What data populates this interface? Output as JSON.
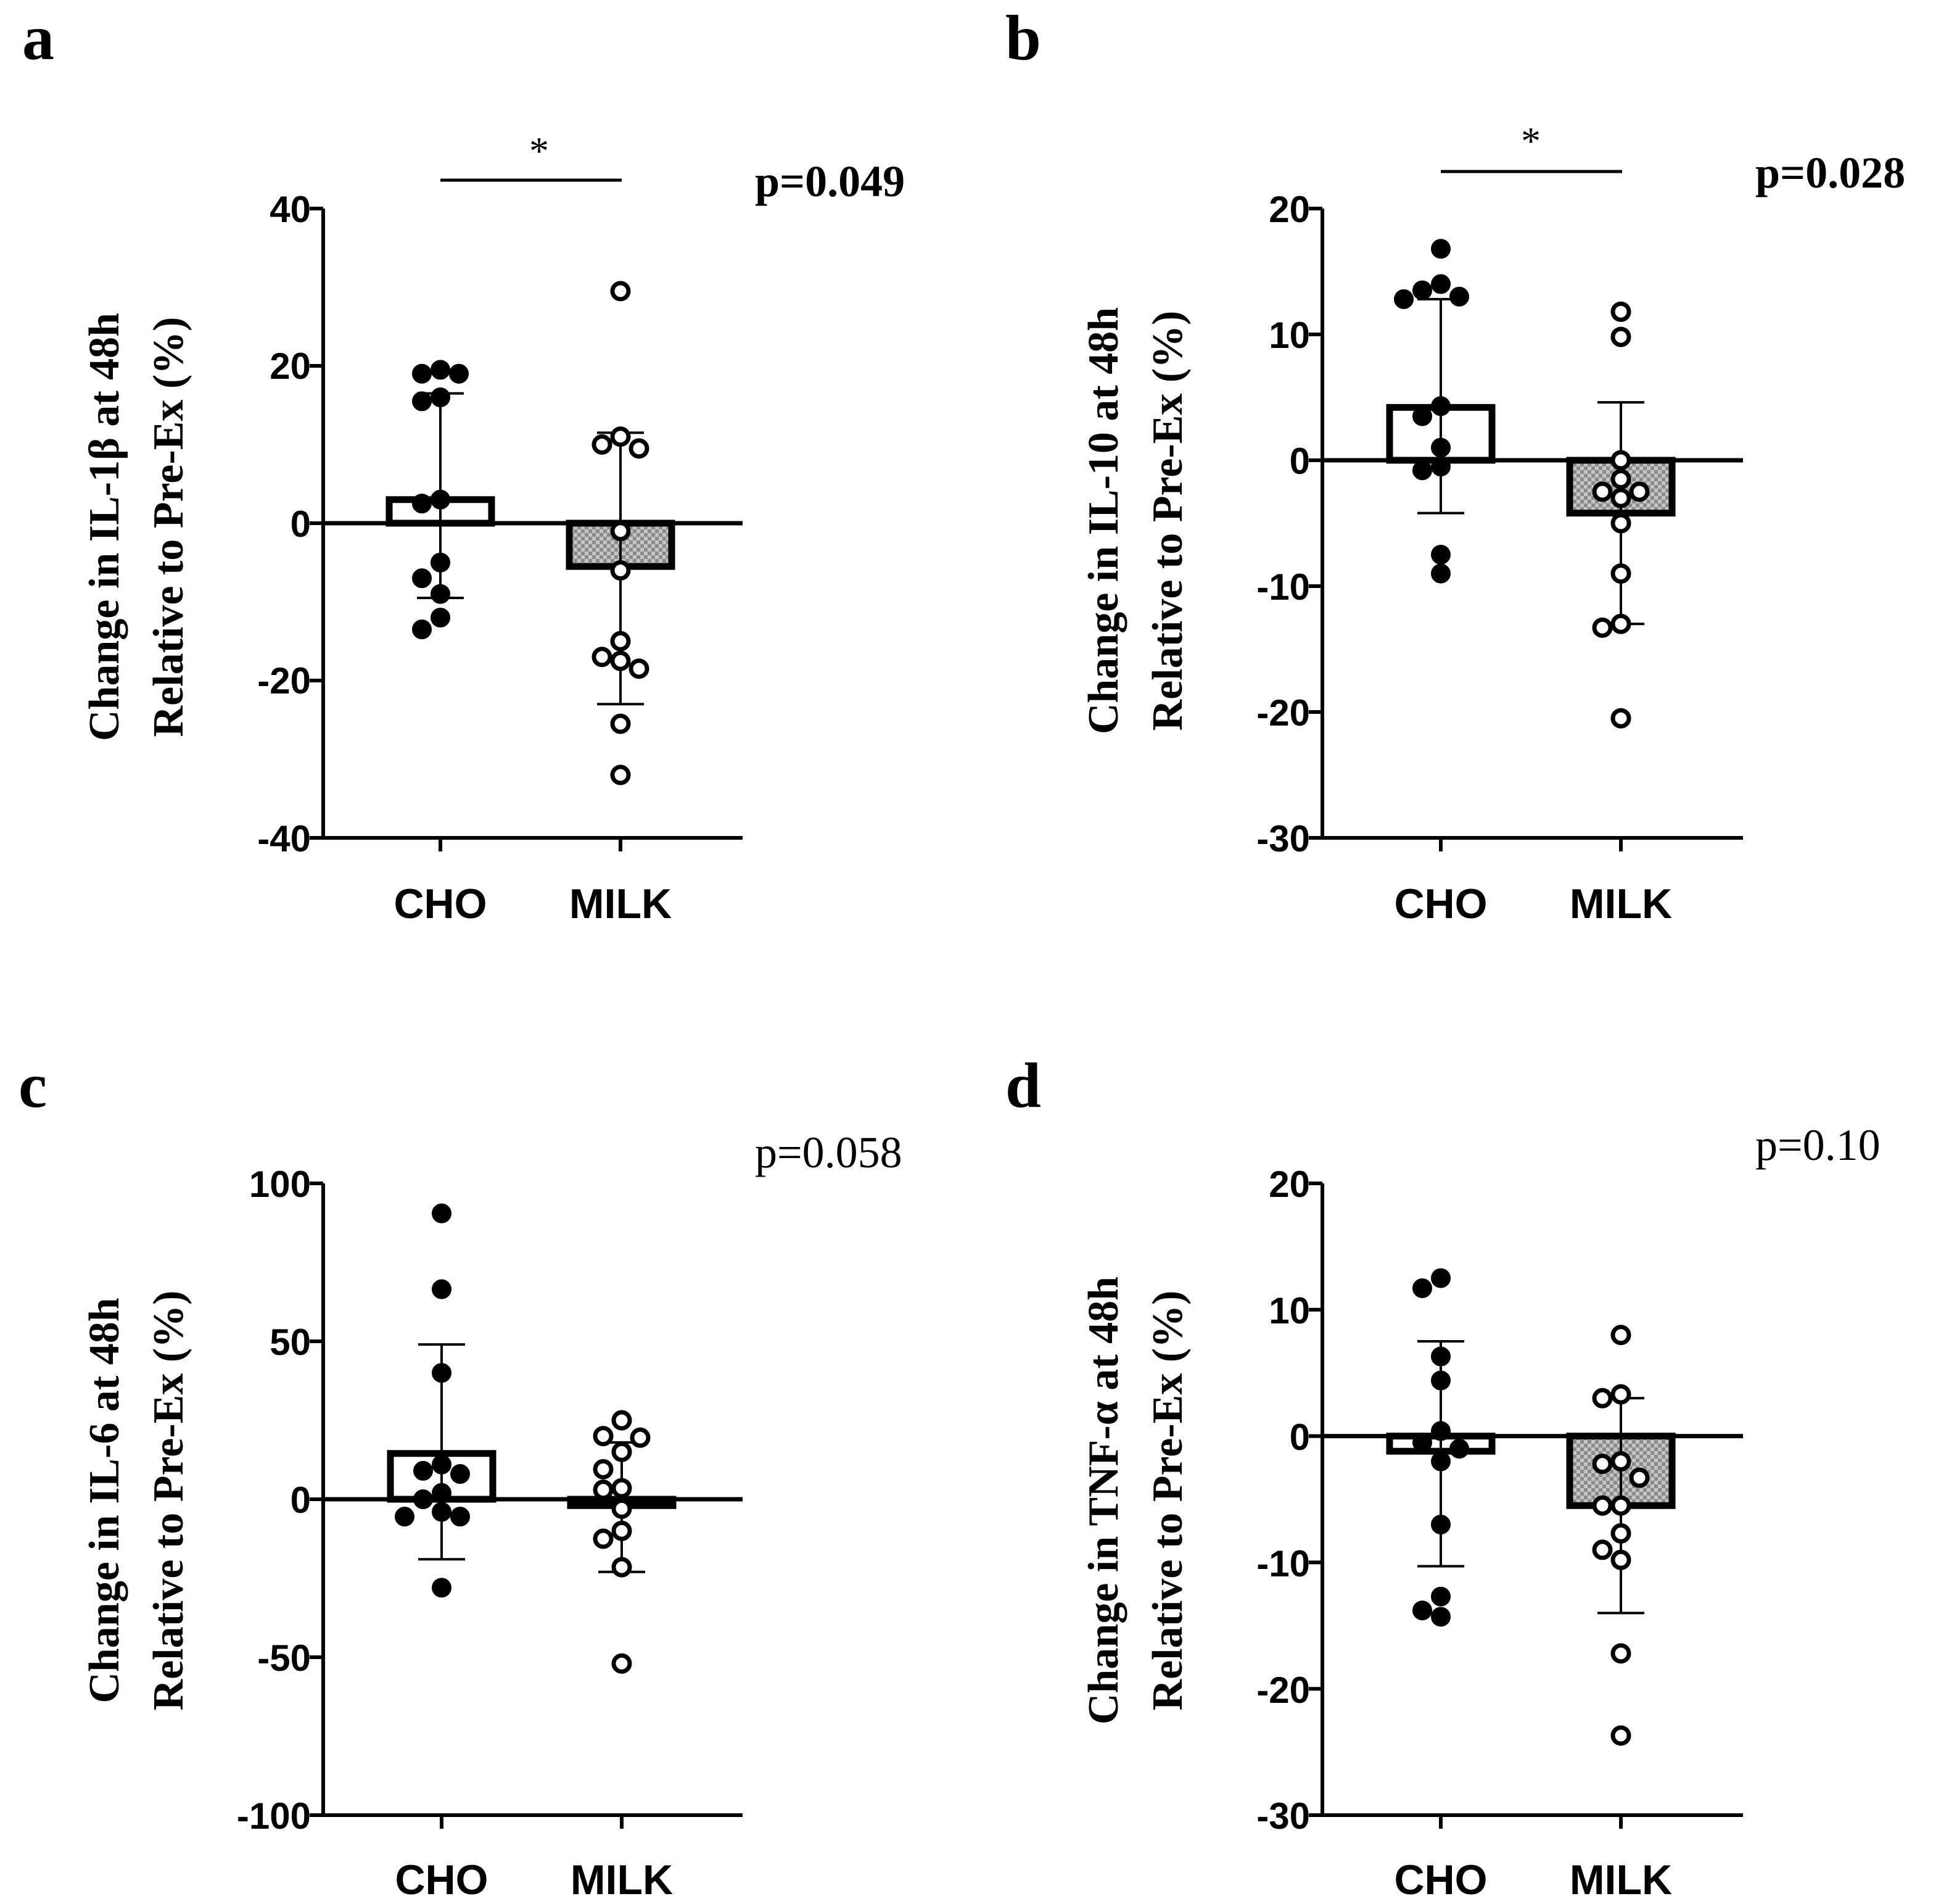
{
  "chart_data": [
    {
      "type": "bar",
      "panel": "a",
      "categories": [
        "CHO",
        "MILK"
      ],
      "means": [
        3,
        -5.5
      ],
      "errors": [
        {
          "upper": 16.5,
          "lower": -9.5
        },
        {
          "upper": 11.5,
          "lower": -23
        }
      ],
      "points": [
        [
          19,
          19.5,
          19,
          15.5,
          16,
          3,
          2.5,
          -5,
          -7,
          -9,
          -12,
          -13.5
        ],
        [
          29.5,
          11,
          10,
          9.5,
          -1,
          -6,
          -15,
          -17,
          -17.5,
          -18.5,
          -25.5,
          -32
        ]
      ],
      "ylabel_lines": [
        "Change in IL-1β at 48h",
        "Relative to Pre-Ex (%)"
      ],
      "ylim": [
        -40,
        40
      ],
      "yticks": [
        40,
        20,
        0,
        -20,
        -40
      ],
      "yticklabels": [
        "40",
        "20",
        "0",
        "-20",
        "-40"
      ],
      "p_value": "p=0.049",
      "p_bold": true,
      "significance": "*"
    },
    {
      "type": "bar",
      "panel": "b",
      "categories": [
        "CHO",
        "MILK"
      ],
      "means": [
        4.2,
        -4.2
      ],
      "errors": [
        {
          "upper": 12.8,
          "lower": -4.2
        },
        {
          "upper": 4.6,
          "lower": -13
        }
      ],
      "points": [
        [
          16.8,
          14,
          13,
          12.8,
          4.3,
          3.5,
          1,
          -0.8,
          -0.5,
          -7.5,
          -9,
          13.5
        ],
        [
          11.8,
          9.8,
          0,
          -1.5,
          -2.5,
          -2.5,
          -3,
          -5,
          -9,
          -13,
          -13.3,
          -20.5
        ]
      ],
      "ylabel_lines": [
        "Change in IL-10 at 48h",
        "Relative to Pre-Ex (%)"
      ],
      "ylim": [
        -30,
        20
      ],
      "yticks": [
        20,
        10,
        0,
        -10,
        -20,
        -30
      ],
      "yticklabels": [
        "20",
        "10",
        "0",
        "-10",
        "-20",
        "-30"
      ],
      "p_value": "p=0.028",
      "p_bold": true,
      "significance": "*"
    },
    {
      "type": "bar",
      "panel": "c",
      "categories": [
        "CHO",
        "MILK"
      ],
      "means": [
        14.5,
        -2
      ],
      "errors": [
        {
          "upper": 49,
          "lower": -19
        },
        {
          "upper": 18,
          "lower": -23
        }
      ],
      "points": [
        [
          90.5,
          66.5,
          40,
          11,
          9,
          8,
          2,
          0,
          -5.5,
          -5.5,
          -4,
          -28
        ],
        [
          25,
          20,
          19.5,
          15,
          9.5,
          3.5,
          3,
          -3,
          -10,
          -12.5,
          -21.5,
          -52
        ]
      ],
      "ylabel_lines": [
        "Change in IL-6 at 48h",
        "Relative to Pre-Ex (%)"
      ],
      "ylim": [
        -100,
        100
      ],
      "yticks": [
        100,
        50,
        0,
        -50,
        -100
      ],
      "yticklabels": [
        "100",
        "50",
        "0",
        "-50",
        "-100"
      ],
      "p_value": "p=0.058",
      "p_bold": false,
      "significance": ""
    },
    {
      "type": "bar",
      "panel": "d",
      "categories": [
        "CHO",
        "MILK"
      ],
      "means": [
        -1.2,
        -5.5
      ],
      "errors": [
        {
          "upper": 7.5,
          "lower": -10.3
        },
        {
          "upper": 3,
          "lower": -14
        }
      ],
      "points": [
        [
          12.5,
          11.7,
          6.3,
          4.4,
          0.4,
          -0.5,
          -1,
          -2,
          -7,
          -12.7,
          -13.8,
          -14.3
        ],
        [
          8,
          3.3,
          3,
          -2,
          -2.2,
          -3.3,
          -5.5,
          -5.5,
          -7.7,
          -9,
          -9.8,
          -17.2,
          -23.7
        ]
      ],
      "ylabel_lines": [
        "Change in TNF-α at 48h",
        "Relative to Pre-Ex (%)"
      ],
      "ylim": [
        -30,
        20
      ],
      "yticks": [
        20,
        10,
        0,
        -10,
        -20,
        -30
      ],
      "yticklabels": [
        "20",
        "10",
        "0",
        "-10",
        "-20",
        "-30"
      ],
      "p_value": "p=0.10",
      "p_bold": false,
      "significance": ""
    }
  ],
  "style": {
    "axis_color": "#000000",
    "cho_fill": "#ffffff",
    "milk_fill": "#b8b8b8",
    "milk_check": "#8a8a8a",
    "cho_point_fill": "#000000",
    "milk_point_fill": "#ffffff"
  }
}
